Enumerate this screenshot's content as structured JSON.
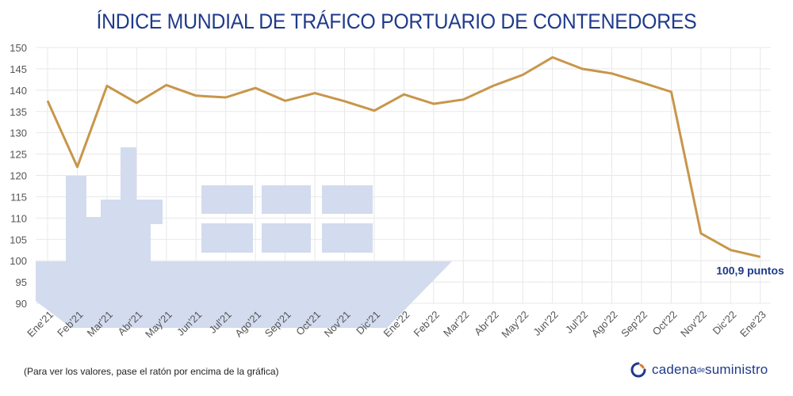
{
  "chart_data": {
    "type": "line",
    "title": "ÍNDICE MUNDIAL DE TRÁFICO PORTUARIO DE CONTENEDORES",
    "categories": [
      "Ene'21",
      "Feb'21",
      "Mar'21",
      "Abr'21",
      "May'21",
      "Jun'21",
      "Jul'21",
      "Ago'21",
      "Sep'21",
      "Oct'21",
      "Nov'21",
      "Dic'21",
      "Ene'22",
      "Feb'22",
      "Mar'22",
      "Abr'22",
      "May'22",
      "Jun'22",
      "Jul'22",
      "Ago'22",
      "Sep'22",
      "Oct'22",
      "Nov'22",
      "Dic'22",
      "Ene'23"
    ],
    "series": [
      {
        "values": [
          137.5,
          122.0,
          141.0,
          137.0,
          141.2,
          138.7,
          138.3,
          140.5,
          137.5,
          139.3,
          137.4,
          135.2,
          139.0,
          136.8,
          137.8,
          141.0,
          143.6,
          147.7,
          145.0,
          143.9,
          141.8,
          139.6,
          106.4,
          102.5,
          100.9
        ],
        "color": "#c8964a"
      }
    ],
    "ylim": [
      90,
      150
    ],
    "yticks": [
      90,
      95,
      100,
      105,
      110,
      115,
      120,
      125,
      130,
      135,
      140,
      145,
      150
    ],
    "grid": true,
    "annotation": {
      "text": "100,9 puntos",
      "index": 24,
      "color": "#1f3a8a"
    }
  },
  "footer": {
    "note": "(Para ver los valores, pase el ratón por encima de la gráfica)",
    "logo_part1": "cadena",
    "logo_part2": "de",
    "logo_part3": "suministro"
  },
  "colors": {
    "title": "#1f3a8a",
    "line": "#c8964a",
    "ship": "#d3dbef",
    "grid": "#e8e8e8",
    "logo_accent": "#e07a2e"
  }
}
